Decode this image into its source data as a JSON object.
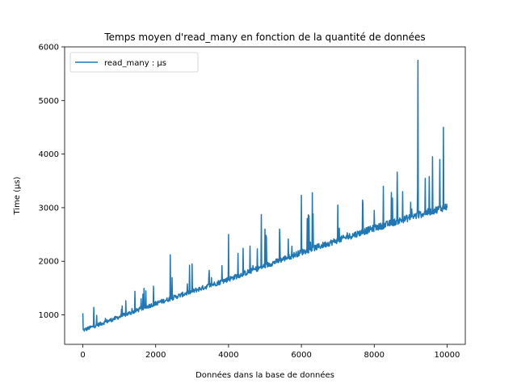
{
  "chart_data": {
    "type": "line",
    "title": "Temps moyen d'read_many en fonction de la quantité de données",
    "xlabel": "Données dans la base de données",
    "ylabel": "Time (µs)",
    "xlim": [
      -500,
      10500
    ],
    "ylim": [
      450,
      6000
    ],
    "xticks": [
      0,
      2000,
      4000,
      6000,
      8000,
      10000
    ],
    "yticks": [
      1000,
      2000,
      3000,
      4000,
      5000,
      6000
    ],
    "legend": "top-left",
    "grid": false,
    "series": [
      {
        "name": "read_many : µs",
        "color": "#1f77b4",
        "baseline": [
          [
            0,
            700
          ],
          [
            2000,
            1200
          ],
          [
            4000,
            1650
          ],
          [
            6000,
            2150
          ],
          [
            8000,
            2600
          ],
          [
            10000,
            3000
          ]
        ],
        "noise": 70,
        "spike_rate": 0.06,
        "spike_max": 700,
        "notable_points": [
          [
            0,
            1030
          ],
          [
            300,
            1140
          ],
          [
            1600,
            1300
          ],
          [
            2400,
            2120
          ],
          [
            3000,
            1950
          ],
          [
            4000,
            2500
          ],
          [
            4900,
            2870
          ],
          [
            5000,
            2600
          ],
          [
            5400,
            2600
          ],
          [
            6000,
            3230
          ],
          [
            6300,
            3280
          ],
          [
            7000,
            3050
          ],
          [
            8000,
            2950
          ],
          [
            8500,
            3180
          ],
          [
            9000,
            3100
          ],
          [
            9200,
            5750
          ],
          [
            9400,
            3550
          ],
          [
            9600,
            3950
          ],
          [
            9800,
            3900
          ],
          [
            9900,
            4500
          ],
          [
            10000,
            3000
          ]
        ]
      }
    ]
  }
}
